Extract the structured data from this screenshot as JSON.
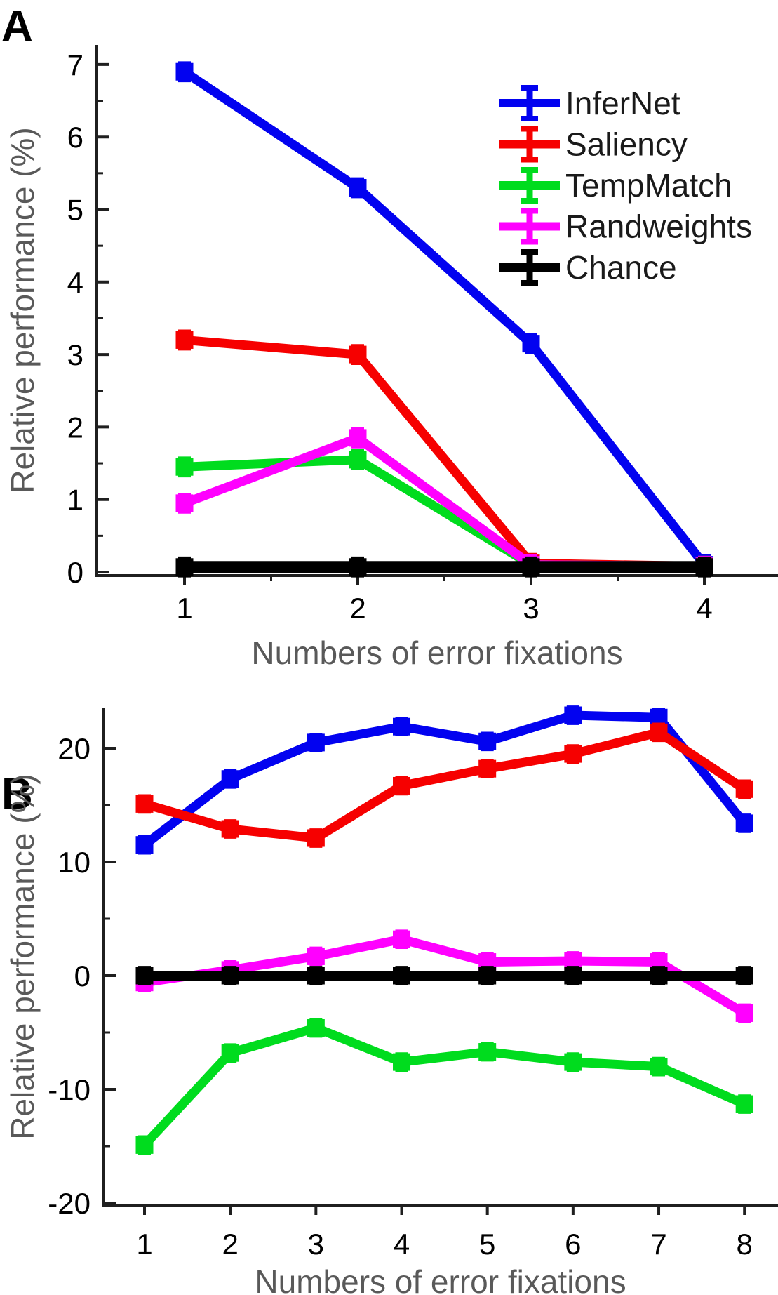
{
  "figure": {
    "panels": [
      {
        "letter": "A"
      },
      {
        "letter": "B"
      }
    ]
  },
  "legend": {
    "entries": [
      {
        "label": "InferNet",
        "color": "#0202f0"
      },
      {
        "label": "Saliency",
        "color": "#f60000"
      },
      {
        "label": "TempMatch",
        "color": "#00dc1e"
      },
      {
        "label": "Randweights",
        "color": "#ff00ff"
      },
      {
        "label": "Chance",
        "color": "#000000"
      }
    ]
  },
  "chart_data": [
    {
      "type": "line",
      "panel": "A",
      "title": "",
      "xlabel": "Numbers of error fixations",
      "ylabel": "Relative performance (%)",
      "x": [
        1,
        2,
        3,
        4
      ],
      "x_tick_labels": [
        "1",
        "2",
        "3",
        "4"
      ],
      "x_minor_ticks": [
        1.5,
        2.5,
        3.5
      ],
      "ylim": [
        0,
        7.27
      ],
      "yticks": [
        0,
        1,
        2,
        3,
        4,
        5,
        6,
        7
      ],
      "ytick_labels": [
        "0",
        "1",
        "2",
        "3",
        "4",
        "5",
        "6",
        "7"
      ],
      "y_minor_ticks": [
        0.5,
        1.5,
        2.5,
        3.5,
        4.5,
        5.5,
        6.5
      ],
      "errorbar": 0.12,
      "grid": false,
      "legend_position": "top-right",
      "series": [
        {
          "name": "InferNet",
          "color": "#0202f0",
          "values": [
            6.9,
            5.3,
            3.15,
            0.1
          ]
        },
        {
          "name": "Saliency",
          "color": "#f60000",
          "values": [
            3.2,
            3.0,
            0.12,
            0.08
          ]
        },
        {
          "name": "TempMatch",
          "color": "#00dc1e",
          "values": [
            1.45,
            1.55,
            0.1,
            0.08
          ]
        },
        {
          "name": "Randweights",
          "color": "#ff00ff",
          "values": [
            0.95,
            1.85,
            0.1,
            0.08
          ]
        },
        {
          "name": "Chance",
          "color": "#000000",
          "values": [
            0.07,
            0.07,
            0.07,
            0.07
          ],
          "thick": true
        }
      ]
    },
    {
      "type": "line",
      "panel": "B",
      "title": "",
      "xlabel": "Numbers of error fixations",
      "ylabel": "Relative performance (%)",
      "x": [
        1,
        2,
        3,
        4,
        5,
        6,
        7,
        8
      ],
      "x_tick_labels": [
        "1",
        "2",
        "3",
        "4",
        "5",
        "6",
        "7",
        "8"
      ],
      "x_minor_ticks": [],
      "ylim": [
        -20.3,
        23.6
      ],
      "yticks": [
        -20,
        -10,
        0,
        10,
        20
      ],
      "ytick_labels": [
        "-20",
        "-10",
        "0",
        "10",
        "20"
      ],
      "y_minor_ticks": [
        -15,
        -5,
        5,
        15
      ],
      "errorbar": 0.7,
      "grid": false,
      "legend_position": "none",
      "series": [
        {
          "name": "InferNet",
          "color": "#0202f0",
          "values": [
            11.5,
            17.3,
            20.5,
            21.9,
            20.6,
            22.9,
            22.7,
            13.4
          ]
        },
        {
          "name": "Saliency",
          "color": "#f60000",
          "values": [
            15.1,
            12.9,
            12.1,
            16.7,
            18.2,
            19.5,
            21.4,
            16.4
          ]
        },
        {
          "name": "TempMatch",
          "color": "#00dc1e",
          "values": [
            -14.9,
            -6.8,
            -4.6,
            -7.6,
            -6.7,
            -7.6,
            -8.0,
            -11.3
          ]
        },
        {
          "name": "Randweights",
          "color": "#ff00ff",
          "values": [
            -0.6,
            0.5,
            1.7,
            3.2,
            1.2,
            1.3,
            1.2,
            -3.3
          ]
        },
        {
          "name": "Chance",
          "color": "#000000",
          "values": [
            0,
            0,
            0,
            0,
            0,
            0,
            0,
            0
          ],
          "thick": true
        }
      ]
    }
  ]
}
